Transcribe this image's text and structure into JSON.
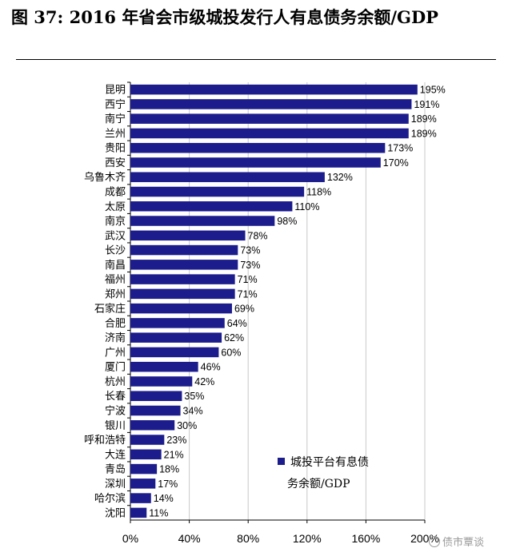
{
  "figure": {
    "title": "图 37:  2016 年省会市级城投发行人有息债务余额/GDP"
  },
  "watermark": {
    "text": "债市覃谈"
  },
  "chart_data": {
    "type": "bar",
    "orientation": "horizontal",
    "categories": [
      "昆明",
      "西宁",
      "南宁",
      "兰州",
      "贵阳",
      "西安",
      "乌鲁木齐",
      "成都",
      "太原",
      "南京",
      "武汉",
      "长沙",
      "南昌",
      "福州",
      "郑州",
      "石家庄",
      "合肥",
      "济南",
      "广州",
      "厦门",
      "杭州",
      "长春",
      "宁波",
      "银川",
      "呼和浩特",
      "大连",
      "青岛",
      "深圳",
      "哈尔滨",
      "沈阳"
    ],
    "values": [
      195,
      191,
      189,
      189,
      173,
      170,
      132,
      118,
      110,
      98,
      78,
      73,
      73,
      71,
      71,
      69,
      64,
      62,
      60,
      46,
      42,
      35,
      34,
      30,
      23,
      21,
      18,
      17,
      14,
      11
    ],
    "value_labels": [
      "195%",
      "191%",
      "189%",
      "189%",
      "173%",
      "170%",
      "132%",
      "118%",
      "110%",
      "98%",
      "78%",
      "73%",
      "73%",
      "71%",
      "71%",
      "69%",
      "64%",
      "62%",
      "60%",
      "46%",
      "42%",
      "35%",
      "34%",
      "30%",
      "23%",
      "21%",
      "18%",
      "17%",
      "14%",
      "11%"
    ],
    "series": [
      {
        "name": "城投平台有息债务余额/GDP",
        "color": "#1c1c8c"
      }
    ],
    "legend": {
      "lines": [
        "城投平台有息债",
        "务余额/GDP"
      ],
      "position": "bottom-right"
    },
    "xlim": [
      0,
      200
    ],
    "xticks": [
      0,
      40,
      80,
      120,
      160,
      200
    ],
    "xtick_labels": [
      "0%",
      "40%",
      "80%",
      "120%",
      "160%",
      "200%"
    ],
    "grid": "vertical",
    "xlabel": "",
    "ylabel": ""
  }
}
